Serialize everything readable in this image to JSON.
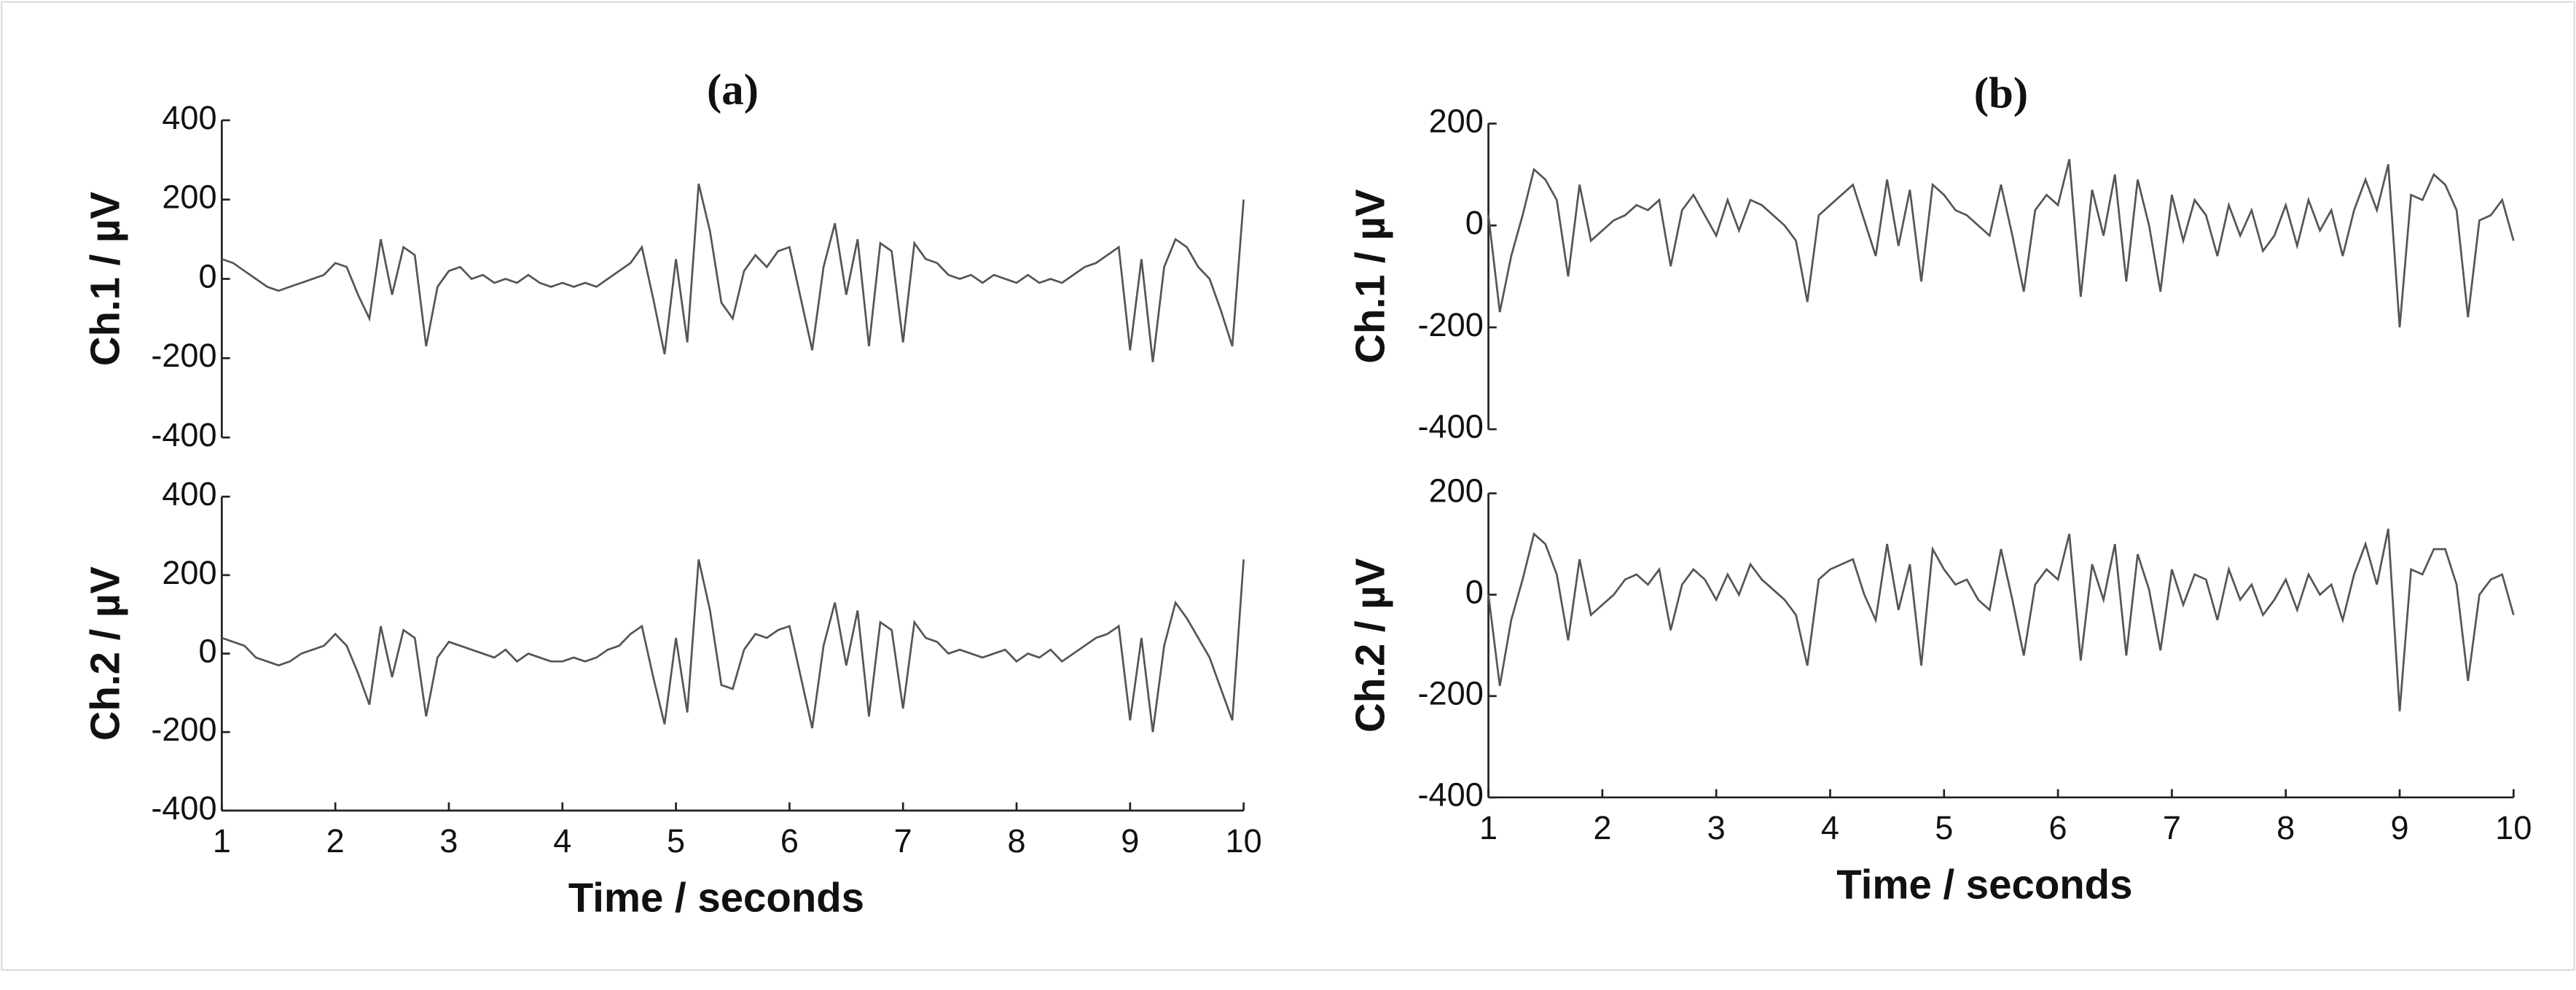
{
  "chart_data": [
    {
      "type": "line",
      "title": "(a)",
      "ylabel": "Ch.1 / µV",
      "color": "#555555",
      "x": [
        1,
        1.1,
        1.2,
        1.3,
        1.4,
        1.5,
        1.6,
        1.7,
        1.8,
        1.9,
        2,
        2.1,
        2.2,
        2.3,
        2.4,
        2.5,
        2.6,
        2.7,
        2.8,
        2.9,
        3,
        3.1,
        3.2,
        3.3,
        3.4,
        3.5,
        3.6,
        3.7,
        3.8,
        3.9,
        4,
        4.1,
        4.2,
        4.3,
        4.4,
        4.5,
        4.6,
        4.7,
        4.8,
        4.9,
        5,
        5.1,
        5.2,
        5.3,
        5.4,
        5.5,
        5.6,
        5.7,
        5.8,
        5.9,
        6,
        6.1,
        6.2,
        6.3,
        6.4,
        6.5,
        6.6,
        6.7,
        6.8,
        6.9,
        7,
        7.1,
        7.2,
        7.3,
        7.4,
        7.5,
        7.6,
        7.7,
        7.8,
        7.9,
        8,
        8.1,
        8.2,
        8.3,
        8.4,
        8.5,
        8.6,
        8.7,
        8.8,
        8.9,
        9,
        9.1,
        9.2,
        9.3,
        9.4,
        9.5,
        9.6,
        9.7,
        9.8,
        9.9,
        10
      ],
      "values": [
        50,
        40,
        20,
        0,
        -20,
        -30,
        -20,
        -10,
        0,
        10,
        40,
        30,
        -40,
        -100,
        100,
        -40,
        80,
        60,
        -170,
        -20,
        20,
        30,
        0,
        10,
        -10,
        0,
        -10,
        10,
        -10,
        -20,
        -10,
        -20,
        -10,
        -20,
        0,
        20,
        40,
        80,
        -50,
        -190,
        50,
        -160,
        240,
        120,
        -60,
        -100,
        20,
        60,
        30,
        70,
        80,
        -50,
        -180,
        30,
        140,
        -40,
        100,
        -170,
        90,
        70,
        -160,
        90,
        50,
        40,
        10,
        0,
        10,
        -10,
        10,
        0,
        -10,
        10,
        -10,
        0,
        -10,
        10,
        30,
        40,
        60,
        80,
        -180,
        50,
        -210,
        30,
        100,
        80,
        30,
        0,
        -80,
        -170,
        200
      ],
      "xlim": [
        1,
        10
      ],
      "ylim": [
        -400,
        400
      ],
      "yticks": [
        -400,
        -200,
        0,
        200,
        400
      ]
    },
    {
      "type": "line",
      "ylabel": "Ch.2 / µV",
      "xlabel": "Time / seconds",
      "color": "#555555",
      "x": [
        1,
        1.1,
        1.2,
        1.3,
        1.4,
        1.5,
        1.6,
        1.7,
        1.8,
        1.9,
        2,
        2.1,
        2.2,
        2.3,
        2.4,
        2.5,
        2.6,
        2.7,
        2.8,
        2.9,
        3,
        3.1,
        3.2,
        3.3,
        3.4,
        3.5,
        3.6,
        3.7,
        3.8,
        3.9,
        4,
        4.1,
        4.2,
        4.3,
        4.4,
        4.5,
        4.6,
        4.7,
        4.8,
        4.9,
        5,
        5.1,
        5.2,
        5.3,
        5.4,
        5.5,
        5.6,
        5.7,
        5.8,
        5.9,
        6,
        6.1,
        6.2,
        6.3,
        6.4,
        6.5,
        6.6,
        6.7,
        6.8,
        6.9,
        7,
        7.1,
        7.2,
        7.3,
        7.4,
        7.5,
        7.6,
        7.7,
        7.8,
        7.9,
        8,
        8.1,
        8.2,
        8.3,
        8.4,
        8.5,
        8.6,
        8.7,
        8.8,
        8.9,
        9,
        9.1,
        9.2,
        9.3,
        9.4,
        9.5,
        9.6,
        9.7,
        9.8,
        9.9,
        10
      ],
      "values": [
        40,
        30,
        20,
        -10,
        -20,
        -30,
        -20,
        0,
        10,
        20,
        50,
        20,
        -50,
        -130,
        70,
        -60,
        60,
        40,
        -160,
        -10,
        30,
        20,
        10,
        0,
        -10,
        10,
        -20,
        0,
        -10,
        -20,
        -20,
        -10,
        -20,
        -10,
        10,
        20,
        50,
        70,
        -60,
        -180,
        40,
        -150,
        240,
        110,
        -80,
        -90,
        10,
        50,
        40,
        60,
        70,
        -60,
        -190,
        20,
        130,
        -30,
        110,
        -160,
        80,
        60,
        -140,
        80,
        40,
        30,
        0,
        10,
        0,
        -10,
        0,
        10,
        -20,
        0,
        -10,
        10,
        -20,
        0,
        20,
        40,
        50,
        70,
        -170,
        40,
        -200,
        20,
        130,
        90,
        40,
        -10,
        -90,
        -170,
        240
      ],
      "xlim": [
        1,
        10
      ],
      "ylim": [
        -400,
        400
      ],
      "yticks": [
        -400,
        -200,
        0,
        200,
        400
      ],
      "xticks": [
        1,
        2,
        3,
        4,
        5,
        6,
        7,
        8,
        9,
        10
      ]
    },
    {
      "type": "line",
      "title": "(b)",
      "ylabel": "Ch.1 / µV",
      "color": "#555555",
      "x": [
        1,
        1.1,
        1.2,
        1.3,
        1.4,
        1.5,
        1.6,
        1.7,
        1.8,
        1.9,
        2,
        2.1,
        2.2,
        2.3,
        2.4,
        2.5,
        2.6,
        2.7,
        2.8,
        2.9,
        3,
        3.1,
        3.2,
        3.3,
        3.4,
        3.5,
        3.6,
        3.7,
        3.8,
        3.9,
        4,
        4.1,
        4.2,
        4.3,
        4.4,
        4.5,
        4.6,
        4.7,
        4.8,
        4.9,
        5,
        5.1,
        5.2,
        5.3,
        5.4,
        5.5,
        5.6,
        5.7,
        5.8,
        5.9,
        6,
        6.1,
        6.2,
        6.3,
        6.4,
        6.5,
        6.6,
        6.7,
        6.8,
        6.9,
        7,
        7.1,
        7.2,
        7.3,
        7.4,
        7.5,
        7.6,
        7.7,
        7.8,
        7.9,
        8,
        8.1,
        8.2,
        8.3,
        8.4,
        8.5,
        8.6,
        8.7,
        8.8,
        8.9,
        9,
        9.1,
        9.2,
        9.3,
        9.4,
        9.5,
        9.6,
        9.7,
        9.8,
        9.9,
        10
      ],
      "values": [
        20,
        -170,
        -60,
        20,
        110,
        90,
        50,
        -100,
        80,
        -30,
        -10,
        10,
        20,
        40,
        30,
        50,
        -80,
        30,
        60,
        20,
        -20,
        50,
        -10,
        50,
        40,
        20,
        0,
        -30,
        -150,
        20,
        40,
        60,
        80,
        10,
        -60,
        90,
        -40,
        70,
        -110,
        80,
        60,
        30,
        20,
        0,
        -20,
        80,
        -20,
        -130,
        30,
        60,
        40,
        130,
        -140,
        70,
        -20,
        100,
        -110,
        90,
        0,
        -130,
        60,
        -30,
        50,
        20,
        -60,
        40,
        -20,
        30,
        -50,
        -20,
        40,
        -40,
        50,
        -10,
        30,
        -60,
        30,
        90,
        30,
        120,
        -200,
        60,
        50,
        100,
        80,
        30,
        -180,
        10,
        20,
        50,
        -30
      ],
      "xlim": [
        1,
        10
      ],
      "ylim": [
        -400,
        200
      ],
      "yticks": [
        -400,
        -200,
        0,
        200
      ]
    },
    {
      "type": "line",
      "ylabel": "Ch.2 / µV",
      "xlabel": "Time / seconds",
      "color": "#555555",
      "x": [
        1,
        1.1,
        1.2,
        1.3,
        1.4,
        1.5,
        1.6,
        1.7,
        1.8,
        1.9,
        2,
        2.1,
        2.2,
        2.3,
        2.4,
        2.5,
        2.6,
        2.7,
        2.8,
        2.9,
        3,
        3.1,
        3.2,
        3.3,
        3.4,
        3.5,
        3.6,
        3.7,
        3.8,
        3.9,
        4,
        4.1,
        4.2,
        4.3,
        4.4,
        4.5,
        4.6,
        4.7,
        4.8,
        4.9,
        5,
        5.1,
        5.2,
        5.3,
        5.4,
        5.5,
        5.6,
        5.7,
        5.8,
        5.9,
        6,
        6.1,
        6.2,
        6.3,
        6.4,
        6.5,
        6.6,
        6.7,
        6.8,
        6.9,
        7,
        7.1,
        7.2,
        7.3,
        7.4,
        7.5,
        7.6,
        7.7,
        7.8,
        7.9,
        8,
        8.1,
        8.2,
        8.3,
        8.4,
        8.5,
        8.6,
        8.7,
        8.8,
        8.9,
        9,
        9.1,
        9.2,
        9.3,
        9.4,
        9.5,
        9.6,
        9.7,
        9.8,
        9.9,
        10
      ],
      "values": [
        0,
        -180,
        -50,
        30,
        120,
        100,
        40,
        -90,
        70,
        -40,
        -20,
        0,
        30,
        40,
        20,
        50,
        -70,
        20,
        50,
        30,
        -10,
        40,
        0,
        60,
        30,
        10,
        -10,
        -40,
        -140,
        30,
        50,
        60,
        70,
        0,
        -50,
        100,
        -30,
        60,
        -140,
        90,
        50,
        20,
        30,
        -10,
        -30,
        90,
        -10,
        -120,
        20,
        50,
        30,
        120,
        -130,
        60,
        -10,
        100,
        -120,
        80,
        10,
        -110,
        50,
        -20,
        40,
        30,
        -50,
        50,
        -10,
        20,
        -40,
        -10,
        30,
        -30,
        40,
        0,
        20,
        -50,
        40,
        100,
        20,
        130,
        -230,
        50,
        40,
        90,
        90,
        20,
        -170,
        0,
        30,
        40,
        -40
      ],
      "xlim": [
        1,
        10
      ],
      "ylim": [
        -400,
        200
      ],
      "yticks": [
        -400,
        -200,
        0,
        200
      ],
      "xticks": [
        1,
        2,
        3,
        4,
        5,
        6,
        7,
        8,
        9,
        10
      ]
    }
  ]
}
